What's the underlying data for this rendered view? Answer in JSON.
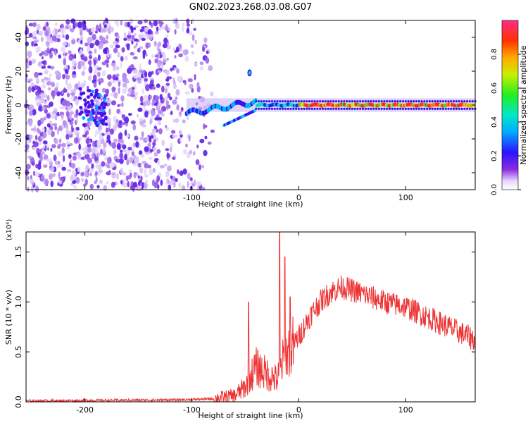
{
  "title": "GN02.2023.268.03.08.G07",
  "chart_data": [
    {
      "type": "heatmap",
      "xlabel": "Height of straight line (km)",
      "ylabel": "Frequency (Hz)",
      "xlim": [
        -255,
        165
      ],
      "ylim": [
        -50,
        50
      ],
      "xticks": [
        -200,
        -100,
        0,
        100
      ],
      "yticks": [
        -40,
        -20,
        0,
        20,
        40
      ],
      "colorbar": {
        "label": "Normalized spectral amplitude",
        "range": [
          0,
          1
        ],
        "ticks": [
          "0.0",
          "0.2",
          "0.4",
          "0.6",
          "0.8"
        ]
      },
      "features": [
        {
          "name": "noise-field",
          "x_range": [
            -255,
            -85
          ],
          "y_range": [
            -50,
            50
          ],
          "amplitude": 0.15
        },
        {
          "name": "signal-line",
          "x_range": [
            -105,
            165
          ],
          "frequency": 0,
          "peak_amplitude": 1.0
        },
        {
          "name": "side-branch",
          "x_range": [
            -70,
            -40
          ],
          "frequency_range": [
            -12,
            -3
          ]
        },
        {
          "name": "burst",
          "x": -46,
          "frequency": 19
        }
      ]
    },
    {
      "type": "line",
      "xlabel": "Height of straight line (km)",
      "ylabel": "SNR (10 * v/v)",
      "multiplier": "(x10⁴)",
      "xlim": [
        -255,
        165
      ],
      "ylim": [
        0,
        1.7
      ],
      "xticks": [
        -200,
        -100,
        0,
        100
      ],
      "yticks": [
        "0.0",
        "0.5",
        "1.0",
        "1.5"
      ],
      "color": "#ee3333",
      "profile_x": [
        -255,
        -110,
        -80,
        -60,
        -50,
        -40,
        -30,
        -20,
        -15,
        -10,
        0,
        10,
        20,
        30,
        40,
        60,
        80,
        100,
        120,
        140,
        165
      ],
      "profile_y": [
        0.01,
        0.02,
        0.03,
        0.06,
        0.15,
        0.35,
        0.28,
        0.22,
        0.4,
        0.5,
        0.65,
        0.85,
        1.0,
        1.1,
        1.15,
        1.08,
        1.0,
        0.95,
        0.85,
        0.75,
        0.62
      ],
      "spikes": [
        {
          "x": -47,
          "y": 1.0
        },
        {
          "x": -18,
          "y": 1.7
        },
        {
          "x": -13,
          "y": 1.45
        },
        {
          "x": -8,
          "y": 1.05
        }
      ]
    }
  ]
}
